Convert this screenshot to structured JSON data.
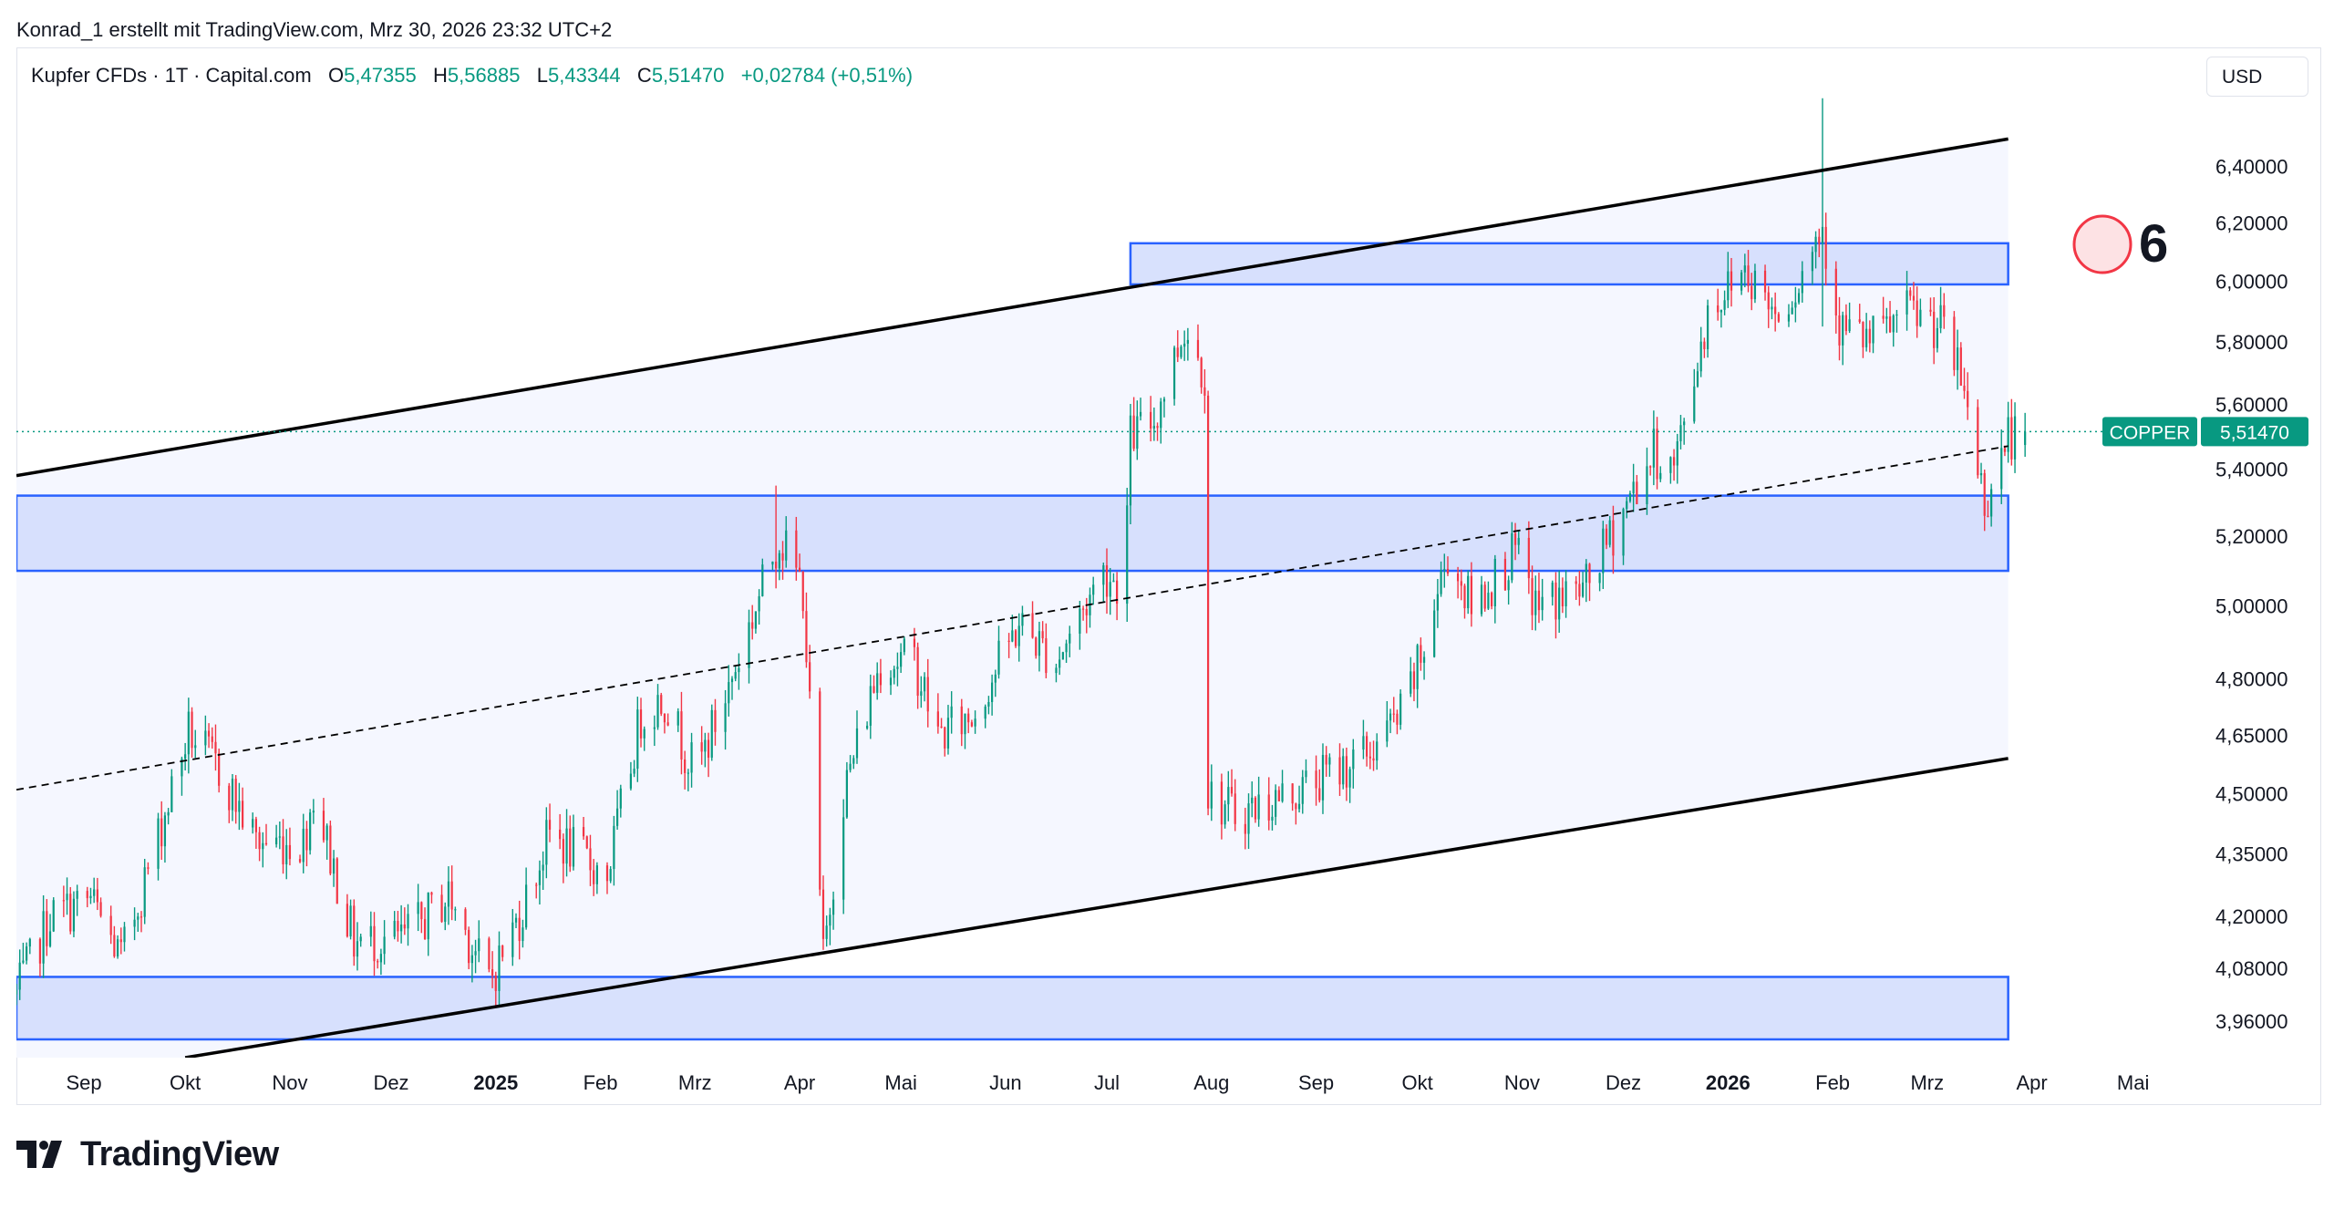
{
  "header": {
    "byline": "Konrad_1 erstellt mit TradingView.com, Mrz 30, 2026 23:32 UTC+2"
  },
  "legend": {
    "symbol": "Kupfer CFDs · 1T · Capital.com",
    "o_label": "O",
    "o_value": "5,47355",
    "h_label": "H",
    "h_value": "5,56885",
    "l_label": "L",
    "l_value": "5,43344",
    "c_label": "C",
    "c_value": "5,51470",
    "change": "+0,02784 (+0,51%)"
  },
  "toolbar": {
    "currency": "USD"
  },
  "annotation": {
    "number": "6"
  },
  "brand": {
    "name": "TradingView"
  },
  "colors": {
    "up": "#089981",
    "down": "#f23645",
    "zone_fill": "#d1dcfd",
    "zone_border": "#2962ff",
    "channel_fill": "#f5f7ff",
    "channel_line": "#000000",
    "price_label_bg": "#089981"
  },
  "chart_data": {
    "type": "candlestick",
    "scale": "log",
    "x_range": [
      "2024-08-12",
      "2026-05-20"
    ],
    "y_range": [
      3.88,
      6.78
    ],
    "price_label": {
      "name": "COPPER",
      "value": "5,51470",
      "numeric": 5.5147
    },
    "y_ticks": [
      {
        "value": 3.96,
        "label": "3,96000"
      },
      {
        "value": 4.08,
        "label": "4,08000"
      },
      {
        "value": 4.2,
        "label": "4,20000"
      },
      {
        "value": 4.35,
        "label": "4,35000"
      },
      {
        "value": 4.5,
        "label": "4,50000"
      },
      {
        "value": 4.65,
        "label": "4,65000"
      },
      {
        "value": 4.8,
        "label": "4,80000"
      },
      {
        "value": 5.0,
        "label": "5,00000"
      },
      {
        "value": 5.2,
        "label": "5,20000"
      },
      {
        "value": 5.4,
        "label": "5,40000"
      },
      {
        "value": 5.6,
        "label": "5,60000"
      },
      {
        "value": 5.8,
        "label": "5,80000"
      },
      {
        "value": 6.0,
        "label": "6,00000"
      },
      {
        "value": 6.2,
        "label": "6,20000"
      },
      {
        "value": 6.4,
        "label": "6,40000"
      }
    ],
    "x_ticks": [
      {
        "date": "2024-09-01",
        "label": "Sep",
        "bold": false
      },
      {
        "date": "2024-10-01",
        "label": "Okt",
        "bold": false
      },
      {
        "date": "2024-11-01",
        "label": "Nov",
        "bold": false
      },
      {
        "date": "2024-12-01",
        "label": "Dez",
        "bold": false
      },
      {
        "date": "2025-01-01",
        "label": "2025",
        "bold": true
      },
      {
        "date": "2025-02-01",
        "label": "Feb",
        "bold": false
      },
      {
        "date": "2025-03-01",
        "label": "Mrz",
        "bold": false
      },
      {
        "date": "2025-04-01",
        "label": "Apr",
        "bold": false
      },
      {
        "date": "2025-05-01",
        "label": "Mai",
        "bold": false
      },
      {
        "date": "2025-06-01",
        "label": "Jun",
        "bold": false
      },
      {
        "date": "2025-07-01",
        "label": "Jul",
        "bold": false
      },
      {
        "date": "2025-08-01",
        "label": "Aug",
        "bold": false
      },
      {
        "date": "2025-09-01",
        "label": "Sep",
        "bold": false
      },
      {
        "date": "2025-10-01",
        "label": "Okt",
        "bold": false
      },
      {
        "date": "2025-11-01",
        "label": "Nov",
        "bold": false
      },
      {
        "date": "2025-12-01",
        "label": "Dez",
        "bold": false
      },
      {
        "date": "2026-01-01",
        "label": "2026",
        "bold": true
      },
      {
        "date": "2026-02-01",
        "label": "Feb",
        "bold": false
      },
      {
        "date": "2026-03-01",
        "label": "Mrz",
        "bold": false
      },
      {
        "date": "2026-04-01",
        "label": "Apr",
        "bold": false
      },
      {
        "date": "2026-05-01",
        "label": "Mai",
        "bold": false
      }
    ],
    "price_path": [
      {
        "date": "2024-08-12",
        "price": 4.02
      },
      {
        "date": "2024-08-22",
        "price": 4.2
      },
      {
        "date": "2024-09-03",
        "price": 4.24
      },
      {
        "date": "2024-09-12",
        "price": 4.1
      },
      {
        "date": "2024-09-26",
        "price": 4.48
      },
      {
        "date": "2024-10-02",
        "price": 4.66
      },
      {
        "date": "2024-10-12",
        "price": 4.55
      },
      {
        "date": "2024-10-22",
        "price": 4.38
      },
      {
        "date": "2024-11-05",
        "price": 4.38
      },
      {
        "date": "2024-11-08",
        "price": 4.5
      },
      {
        "date": "2024-11-20",
        "price": 4.14
      },
      {
        "date": "2024-12-05",
        "price": 4.15
      },
      {
        "date": "2024-12-18",
        "price": 4.25
      },
      {
        "date": "2024-12-30",
        "price": 4.05
      },
      {
        "date": "2025-01-08",
        "price": 4.2
      },
      {
        "date": "2025-01-17",
        "price": 4.4
      },
      {
        "date": "2025-01-25",
        "price": 4.35
      },
      {
        "date": "2025-02-03",
        "price": 4.3
      },
      {
        "date": "2025-02-13",
        "price": 4.7
      },
      {
        "date": "2025-02-20",
        "price": 4.75
      },
      {
        "date": "2025-03-01",
        "price": 4.55
      },
      {
        "date": "2025-03-10",
        "price": 4.75
      },
      {
        "date": "2025-03-26",
        "price": 5.2
      },
      {
        "date": "2025-04-02",
        "price": 5.05
      },
      {
        "date": "2025-04-08",
        "price": 4.1
      },
      {
        "date": "2025-04-14",
        "price": 4.5
      },
      {
        "date": "2025-04-25",
        "price": 4.85
      },
      {
        "date": "2025-05-05",
        "price": 4.85
      },
      {
        "date": "2025-05-12",
        "price": 4.65
      },
      {
        "date": "2025-05-22",
        "price": 4.7
      },
      {
        "date": "2025-06-05",
        "price": 4.95
      },
      {
        "date": "2025-06-16",
        "price": 4.85
      },
      {
        "date": "2025-06-30",
        "price": 5.1
      },
      {
        "date": "2025-07-06",
        "price": 5.05
      },
      {
        "date": "2025-07-08",
        "price": 5.5
      },
      {
        "date": "2025-07-15",
        "price": 5.55
      },
      {
        "date": "2025-07-24",
        "price": 5.85
      },
      {
        "date": "2025-07-30",
        "price": 5.7
      },
      {
        "date": "2025-07-31",
        "price": 4.5
      },
      {
        "date": "2025-08-08",
        "price": 4.45
      },
      {
        "date": "2025-08-25",
        "price": 4.5
      },
      {
        "date": "2025-09-05",
        "price": 4.55
      },
      {
        "date": "2025-09-16",
        "price": 4.6
      },
      {
        "date": "2025-09-26",
        "price": 4.7
      },
      {
        "date": "2025-10-02",
        "price": 4.85
      },
      {
        "date": "2025-10-10",
        "price": 5.15
      },
      {
        "date": "2025-10-17",
        "price": 5.0
      },
      {
        "date": "2025-10-30",
        "price": 5.15
      },
      {
        "date": "2025-11-05",
        "price": 5.0
      },
      {
        "date": "2025-11-20",
        "price": 5.05
      },
      {
        "date": "2025-12-02",
        "price": 5.3
      },
      {
        "date": "2025-12-10",
        "price": 5.45
      },
      {
        "date": "2025-12-16",
        "price": 5.4
      },
      {
        "date": "2025-12-26",
        "price": 5.9
      },
      {
        "date": "2026-01-06",
        "price": 6.05
      },
      {
        "date": "2026-01-15",
        "price": 5.9
      },
      {
        "date": "2026-01-22",
        "price": 6.0
      },
      {
        "date": "2026-01-29",
        "price": 6.2
      },
      {
        "date": "2026-02-03",
        "price": 5.85
      },
      {
        "date": "2026-02-12",
        "price": 5.8
      },
      {
        "date": "2026-02-24",
        "price": 5.9
      },
      {
        "date": "2026-03-05",
        "price": 5.85
      },
      {
        "date": "2026-03-12",
        "price": 5.65
      },
      {
        "date": "2026-03-18",
        "price": 5.3
      },
      {
        "date": "2026-03-25",
        "price": 5.5
      },
      {
        "date": "2026-03-30",
        "price": 5.5147
      }
    ],
    "spikes": [
      {
        "date": "2026-01-29",
        "high": 6.65,
        "low": 5.85
      },
      {
        "date": "2025-03-25",
        "high": 5.35,
        "low": 5.05
      },
      {
        "date": "2025-07-27",
        "high": 5.98,
        "low": 5.55
      }
    ],
    "zones": [
      {
        "start": "2025-07-08",
        "end": "2026-03-25",
        "top": 6.13,
        "bottom": 5.99
      },
      {
        "start": "2024-08-12",
        "end": "2026-03-25",
        "top": 5.32,
        "bottom": 5.1
      },
      {
        "start": "2024-08-12",
        "end": "2026-03-25",
        "top": 4.06,
        "bottom": 3.92
      }
    ],
    "channel": {
      "upper": [
        {
          "date": "2024-08-12",
          "price": 5.38
        },
        {
          "date": "2026-03-25",
          "price": 6.5
        }
      ],
      "lower": [
        {
          "date": "2024-10-01",
          "price": 3.88
        },
        {
          "date": "2026-03-25",
          "price": 4.59
        }
      ],
      "mid": [
        {
          "date": "2024-08-12",
          "price": 4.51
        },
        {
          "date": "2026-03-25",
          "price": 5.47
        }
      ]
    }
  }
}
